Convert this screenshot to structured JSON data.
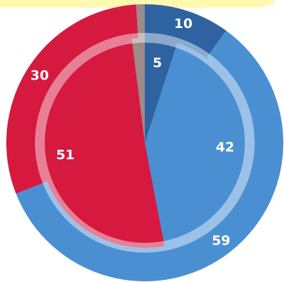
{
  "chart_data": {
    "type": "pie",
    "series": [
      {
        "values": [
          10,
          59,
          30,
          1
        ],
        "value_labels": [
          "10",
          "59",
          "30",
          null
        ],
        "colors": [
          "#2f62a0",
          "#4b8fd3",
          "#d6193f",
          "#9b8b8b"
        ]
      },
      {
        "values": [
          5,
          42,
          51,
          2
        ],
        "value_labels": [
          "5",
          "42",
          "51",
          null
        ],
        "colors": [
          "#2f62a0",
          "#4b8fd3",
          "#d6193f",
          "#9b8b8b"
        ]
      }
    ]
  }
}
